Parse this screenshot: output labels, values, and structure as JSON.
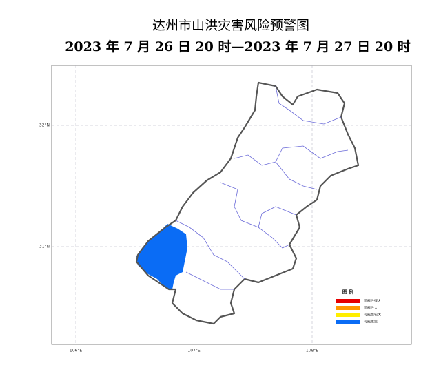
{
  "title": "达州市山洪灾害风险预警图",
  "subtitle": "2023 年 7 月 26 日 20 时—2023 年 7 月 27 日 20 时",
  "map": {
    "lon_ticks": [
      {
        "value": 106,
        "label": "106°E"
      },
      {
        "value": 107,
        "label": "107°E"
      },
      {
        "value": 108,
        "label": "108°E"
      }
    ],
    "lat_ticks": [
      {
        "value": 32,
        "label": "32°N"
      },
      {
        "value": 31,
        "label": "31°N"
      }
    ],
    "legend": {
      "title": "图  例",
      "items": [
        {
          "label": "可能性很大",
          "color": "#e60000"
        },
        {
          "label": "可能性大",
          "color": "#ff9900"
        },
        {
          "label": "可能性较大",
          "color": "#ffee00"
        },
        {
          "label": "可能发生",
          "color": "#0a6cf5"
        }
      ]
    }
  }
}
